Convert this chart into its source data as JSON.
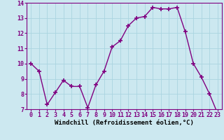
{
  "x": [
    0,
    1,
    2,
    3,
    4,
    5,
    6,
    7,
    8,
    9,
    10,
    11,
    12,
    13,
    14,
    15,
    16,
    17,
    18,
    19,
    20,
    21,
    22,
    23
  ],
  "y": [
    10.0,
    9.5,
    7.3,
    8.1,
    8.9,
    8.5,
    8.5,
    7.1,
    8.6,
    9.5,
    11.1,
    11.5,
    12.5,
    13.0,
    13.1,
    13.7,
    13.6,
    13.6,
    13.7,
    12.1,
    10.0,
    9.1,
    8.0,
    6.7
  ],
  "line_color": "#800080",
  "marker_color": "#800080",
  "bg_color": "#cce8f0",
  "grid_color": "#aad4e0",
  "xlabel": "Windchill (Refroidissement éolien,°C)",
  "ylim": [
    7,
    14
  ],
  "yticks": [
    7,
    8,
    9,
    10,
    11,
    12,
    13,
    14
  ],
  "xticks": [
    0,
    1,
    2,
    3,
    4,
    5,
    6,
    7,
    8,
    9,
    10,
    11,
    12,
    13,
    14,
    15,
    16,
    17,
    18,
    19,
    20,
    21,
    22,
    23
  ],
  "xlabel_fontsize": 6.5,
  "tick_fontsize": 6.0,
  "line_width": 1.0,
  "marker_size": 4
}
